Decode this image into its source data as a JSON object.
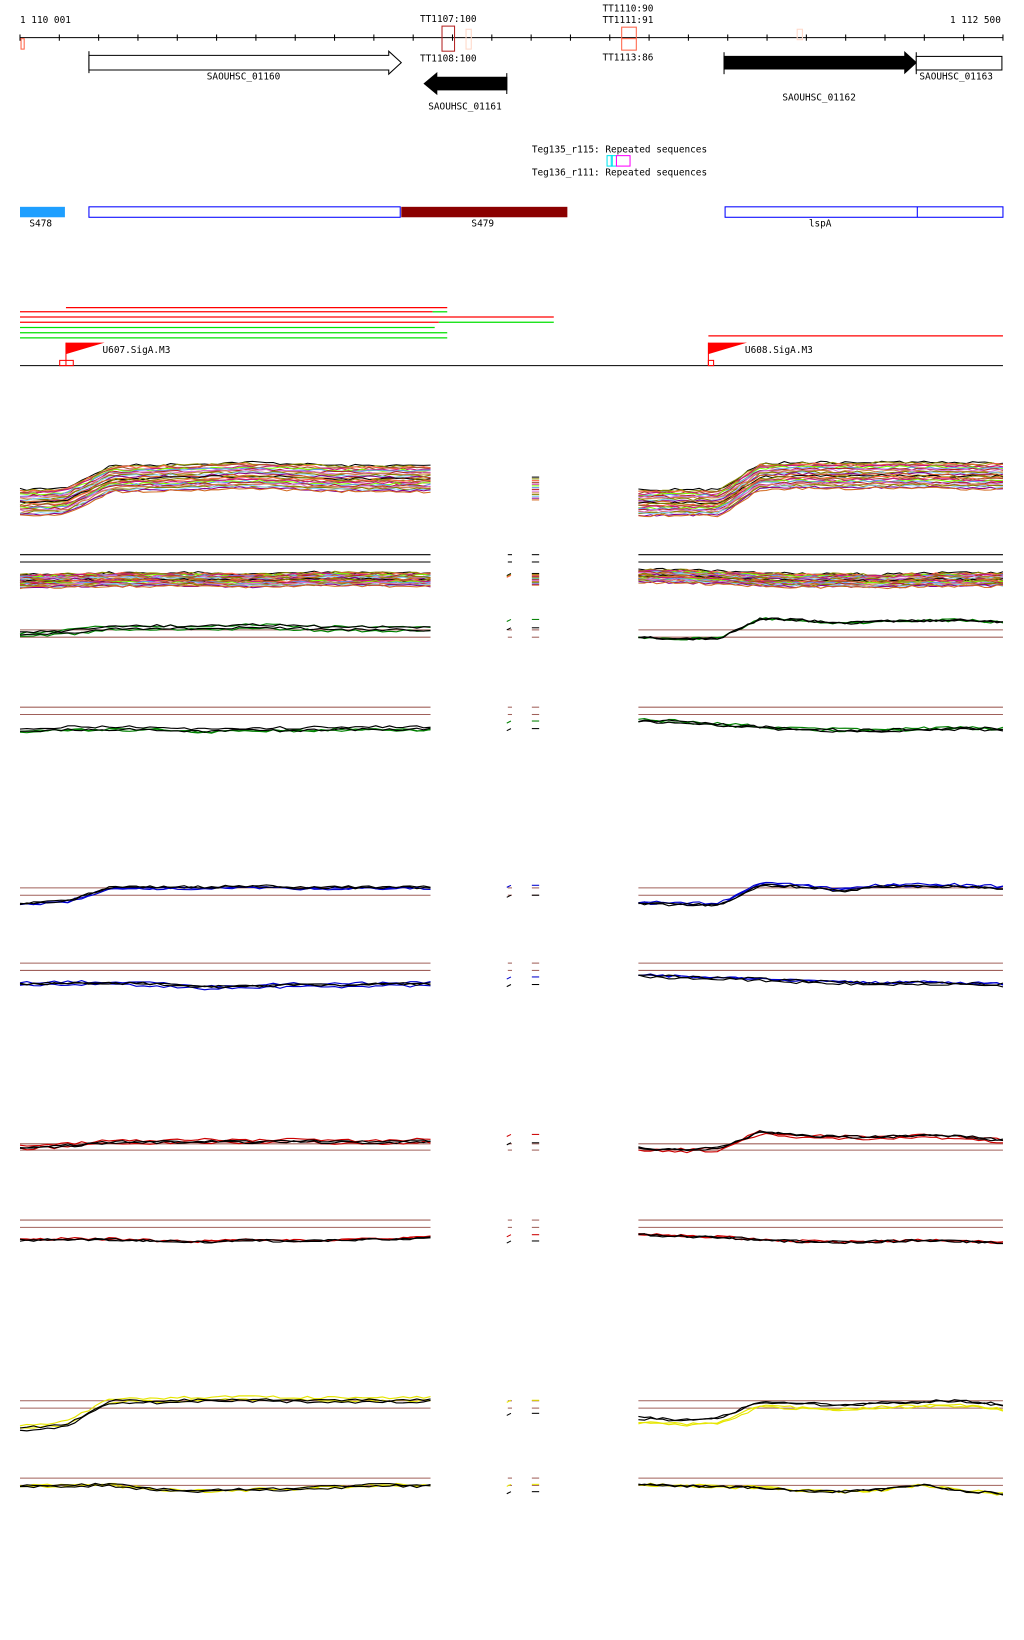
{
  "ruler": {
    "start_label": "1 110 001",
    "end_label": "1 112 500"
  },
  "terminators": [
    {
      "label": "TT1107:100"
    },
    {
      "label": "TT1108:100"
    },
    {
      "label": "TT1110:90"
    },
    {
      "label": "TT1111:91"
    },
    {
      "label": "TT1113:86"
    }
  ],
  "genes": [
    {
      "label": "SAOUHSC_01160",
      "strand": "+",
      "style": "open"
    },
    {
      "label": "SAOUHSC_01161",
      "strand": "-",
      "style": "filled"
    },
    {
      "label": "SAOUHSC_01162",
      "strand": "+",
      "style": "filled"
    },
    {
      "label": "SAOUHSC_01163",
      "strand": "+",
      "style": "open"
    }
  ],
  "repeats": [
    {
      "label": "Teg135_r115: Repeated sequences"
    },
    {
      "label": "Teg136_r111: Repeated sequences"
    }
  ],
  "regions": [
    {
      "label": "S478",
      "color": "#1e9fff"
    },
    {
      "label": "S479",
      "color": "#8b0000"
    },
    {
      "label": "lspA",
      "color": "#0000ff"
    }
  ],
  "promoters": [
    {
      "label": "U607.SigA.M3"
    },
    {
      "label": "U608.SigA.M3"
    }
  ],
  "colors": {
    "multi": [
      "#000000",
      "#8b8b00",
      "#ff6347",
      "#a0522d",
      "#c71585",
      "#7cfc00",
      "#6495ed",
      "#b22222",
      "#da70d6",
      "#cd853f",
      "#808000",
      "#87cefa",
      "#8b008b",
      "#d2691e"
    ],
    "green": "#008000",
    "blue": "#0000cd",
    "red": "#cc0000",
    "yellow": "#e6e600",
    "ref": "#a0605a"
  },
  "chart_data": {
    "type": "line",
    "title": "",
    "tracks": [
      {
        "kind": "multi",
        "left": [
          0.1,
          0.15,
          0.8,
          0.82,
          0.85,
          0.9,
          0.85,
          0.8,
          0.8,
          0.8
        ],
        "right": [
          0.1,
          0.1,
          0.1,
          0.85,
          0.9,
          0.88,
          0.9,
          0.9,
          0.88,
          0.88
        ]
      },
      {
        "kind": "multi",
        "left": [
          0.4,
          0.45,
          0.5,
          0.5,
          0.5,
          0.45,
          0.5,
          0.55,
          0.5,
          0.5
        ],
        "right": [
          0.7,
          0.7,
          0.6,
          0.5,
          0.45,
          0.45,
          0.4,
          0.5,
          0.5,
          0.5
        ]
      },
      {
        "kind": "green",
        "left": [
          0.2,
          0.3,
          0.5,
          0.5,
          0.5,
          0.55,
          0.5,
          0.45,
          0.45,
          0.45
        ],
        "right": [
          0.1,
          0.05,
          0.05,
          0.9,
          0.85,
          0.7,
          0.8,
          0.82,
          0.85,
          0.75
        ]
      },
      {
        "kind": "green",
        "left": [
          0.4,
          0.5,
          0.5,
          0.5,
          0.4,
          0.45,
          0.45,
          0.5,
          0.5,
          0.5
        ],
        "right": [
          0.9,
          0.85,
          0.7,
          0.6,
          0.5,
          0.45,
          0.45,
          0.5,
          0.55,
          0.5
        ]
      },
      {
        "kind": "blue",
        "left": [
          0.2,
          0.3,
          0.8,
          0.8,
          0.8,
          0.85,
          0.8,
          0.8,
          0.8,
          0.8
        ],
        "right": [
          0.2,
          0.15,
          0.15,
          0.85,
          0.8,
          0.65,
          0.8,
          0.82,
          0.8,
          0.75
        ]
      },
      {
        "kind": "blue",
        "left": [
          0.5,
          0.55,
          0.55,
          0.5,
          0.35,
          0.4,
          0.45,
          0.45,
          0.5,
          0.5
        ],
        "right": [
          0.9,
          0.8,
          0.75,
          0.7,
          0.6,
          0.55,
          0.5,
          0.55,
          0.5,
          0.45
        ]
      },
      {
        "kind": "red",
        "left": [
          0.3,
          0.4,
          0.55,
          0.55,
          0.6,
          0.55,
          0.6,
          0.55,
          0.55,
          0.6
        ],
        "right": [
          0.2,
          0.15,
          0.2,
          0.9,
          0.75,
          0.7,
          0.7,
          0.75,
          0.7,
          0.55
        ]
      },
      {
        "kind": "red",
        "left": [
          0.55,
          0.6,
          0.6,
          0.5,
          0.45,
          0.55,
          0.5,
          0.55,
          0.6,
          0.7
        ],
        "right": [
          0.9,
          0.8,
          0.75,
          0.6,
          0.5,
          0.45,
          0.5,
          0.55,
          0.5,
          0.45
        ]
      },
      {
        "kind": "yellow",
        "left": [
          0.1,
          0.2,
          0.85,
          0.85,
          0.88,
          0.9,
          0.88,
          0.87,
          0.87,
          0.88
        ],
        "right": [
          0.3,
          0.25,
          0.3,
          0.75,
          0.7,
          0.65,
          0.72,
          0.75,
          0.78,
          0.65
        ]
      },
      {
        "kind": "yellow",
        "left": [
          0.8,
          0.8,
          0.85,
          0.6,
          0.55,
          0.6,
          0.65,
          0.75,
          0.85,
          0.8
        ],
        "right": [
          0.9,
          0.85,
          0.8,
          0.75,
          0.6,
          0.55,
          0.65,
          0.9,
          0.6,
          0.45
        ]
      }
    ]
  }
}
